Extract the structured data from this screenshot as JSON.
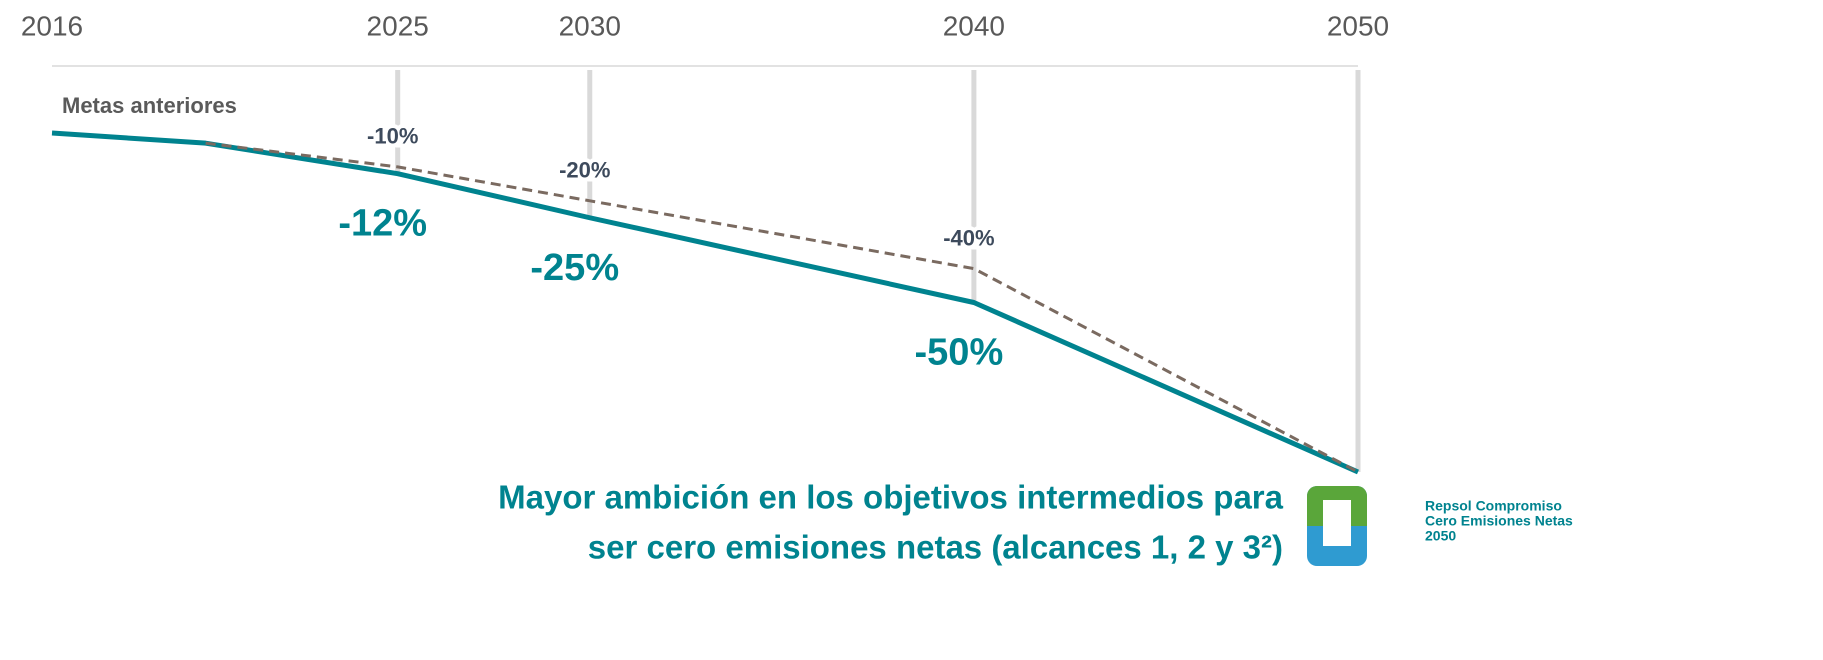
{
  "chart_data": {
    "type": "line",
    "x": [
      2016,
      2020,
      2025,
      2030,
      2040,
      2050
    ],
    "xlim": [
      2016,
      2050
    ],
    "xticks": [
      2016,
      2025,
      2030,
      2040,
      2050
    ],
    "ylim": [
      -100,
      0
    ],
    "grid": true,
    "series": [
      {
        "color": "#00838f",
        "style": "solid",
        "values": [
          0,
          -3,
          -12,
          -25,
          -50,
          -100
        ],
        "value_labels": [
          null,
          null,
          "-12%",
          "-25%",
          "-50%",
          null
        ]
      },
      {
        "name": "Metas anteriores",
        "color": "#7a6a60",
        "style": "dashed",
        "values": [
          null,
          -3,
          -10,
          -20,
          -40,
          -100
        ],
        "value_labels": [
          null,
          null,
          "-10%",
          "-20%",
          "-40%",
          null
        ]
      }
    ],
    "annotations": [
      "Mayor ambición en los objetivos intermedios para",
      "ser cero emisiones netas (alcances 1, 2 y 3²)"
    ],
    "logo": [
      "Repsol Compromiso",
      "Cero Emisiones Netas",
      "2050"
    ]
  }
}
